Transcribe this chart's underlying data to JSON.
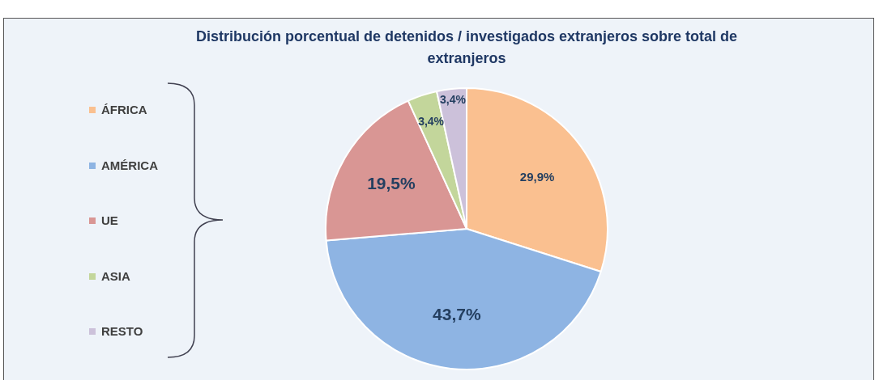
{
  "chart_data": {
    "type": "pie",
    "title": "Distribución porcentual de detenidos / investigados extranjeros sobre total de extranjeros",
    "categories": [
      "ÁFRICA",
      "AMÉRICA",
      "UE",
      "ASIA",
      "RESTO"
    ],
    "values": [
      29.9,
      43.7,
      19.5,
      3.4,
      3.4
    ],
    "colors": [
      "#fac090",
      "#8eb4e3",
      "#d99694",
      "#c3d69b",
      "#ccc1da"
    ],
    "value_labels": [
      "29,9%",
      "43,7%",
      "19,5%",
      "3,4%",
      "3,4%"
    ],
    "legend": "left"
  }
}
